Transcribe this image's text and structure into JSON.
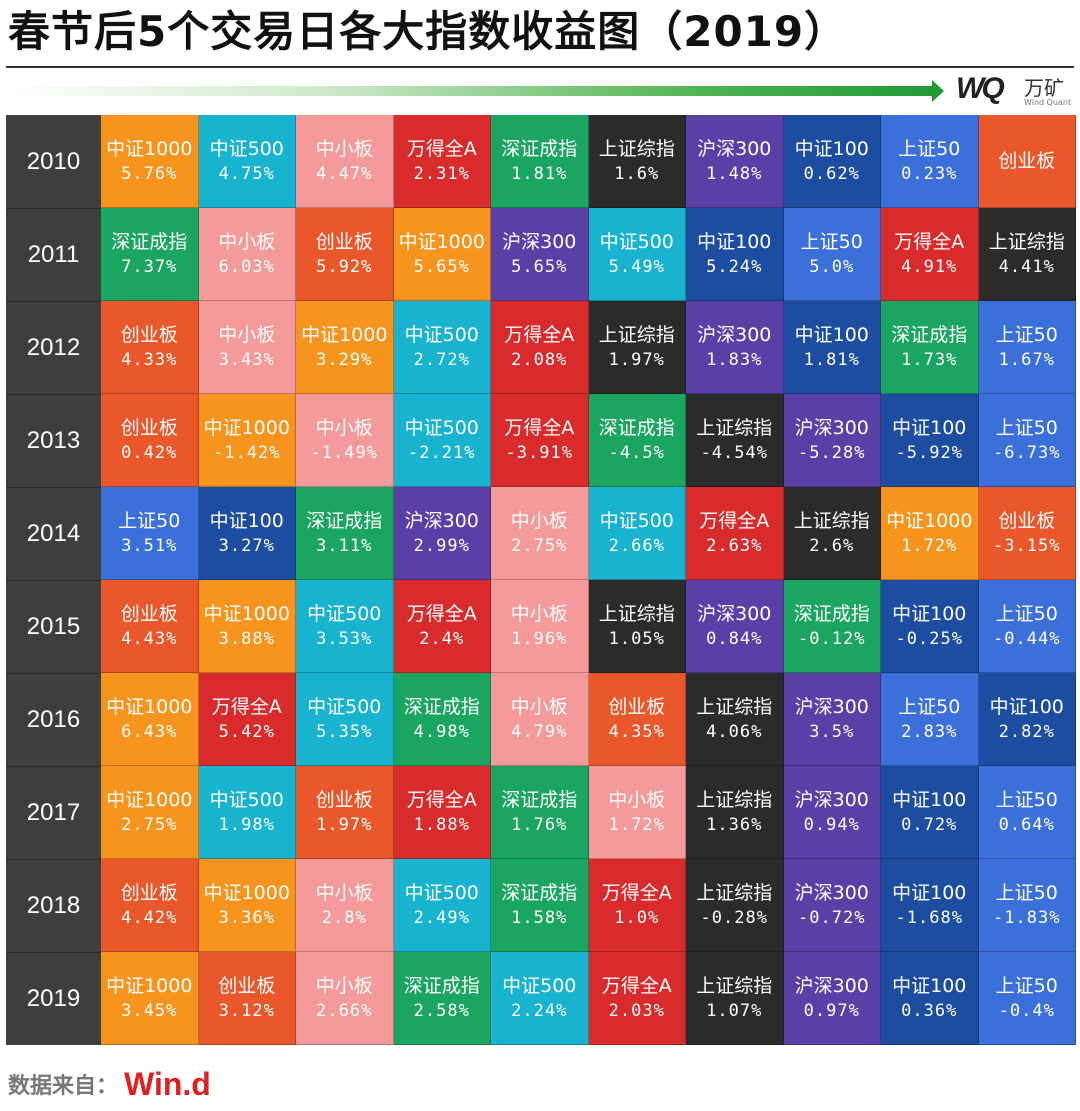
{
  "title": "春节后5个交易日各大指数收益图（2019）",
  "logo": {
    "mark": "WQ",
    "cn": "万矿",
    "en": "Wind Quant"
  },
  "source": {
    "label": "数据来自：",
    "brand": "Win.d"
  },
  "colors": {
    "中证1000": "#f7941d",
    "中证500": "#17b3cf",
    "中小板": "#f59a9a",
    "万得全A": "#d92b2b",
    "深证成指": "#1aa561",
    "上证综指": "#2b2b2b",
    "沪深300": "#5b3fa6",
    "中证100": "#1d4da0",
    "上证50": "#3b6fd9",
    "创业板": "#e9572a"
  },
  "chart_data": {
    "type": "table",
    "title": "春节后5个交易日各大指数收益图（2019）",
    "rows": [
      {
        "year": "2010",
        "cells": [
          {
            "name": "中证1000",
            "value": "5.76%"
          },
          {
            "name": "中证500",
            "value": "4.75%"
          },
          {
            "name": "中小板",
            "value": "4.47%"
          },
          {
            "name": "万得全A",
            "value": "2.31%"
          },
          {
            "name": "深证成指",
            "value": "1.81%"
          },
          {
            "name": "上证综指",
            "value": "1.6%"
          },
          {
            "name": "沪深300",
            "value": "1.48%"
          },
          {
            "name": "中证100",
            "value": "0.62%"
          },
          {
            "name": "上证50",
            "value": "0.23%"
          },
          {
            "name": "创业板",
            "value": ""
          }
        ]
      },
      {
        "year": "2011",
        "cells": [
          {
            "name": "深证成指",
            "value": "7.37%"
          },
          {
            "name": "中小板",
            "value": "6.03%"
          },
          {
            "name": "创业板",
            "value": "5.92%"
          },
          {
            "name": "中证1000",
            "value": "5.65%"
          },
          {
            "name": "沪深300",
            "value": "5.65%"
          },
          {
            "name": "中证500",
            "value": "5.49%"
          },
          {
            "name": "中证100",
            "value": "5.24%"
          },
          {
            "name": "上证50",
            "value": "5.0%"
          },
          {
            "name": "万得全A",
            "value": "4.91%"
          },
          {
            "name": "上证综指",
            "value": "4.41%"
          }
        ]
      },
      {
        "year": "2012",
        "cells": [
          {
            "name": "创业板",
            "value": "4.33%"
          },
          {
            "name": "中小板",
            "value": "3.43%"
          },
          {
            "name": "中证1000",
            "value": "3.29%"
          },
          {
            "name": "中证500",
            "value": "2.72%"
          },
          {
            "name": "万得全A",
            "value": "2.08%"
          },
          {
            "name": "上证综指",
            "value": "1.97%"
          },
          {
            "name": "沪深300",
            "value": "1.83%"
          },
          {
            "name": "中证100",
            "value": "1.81%"
          },
          {
            "name": "深证成指",
            "value": "1.73%"
          },
          {
            "name": "上证50",
            "value": "1.67%"
          }
        ]
      },
      {
        "year": "2013",
        "cells": [
          {
            "name": "创业板",
            "value": "0.42%"
          },
          {
            "name": "中证1000",
            "value": "-1.42%"
          },
          {
            "name": "中小板",
            "value": "-1.49%"
          },
          {
            "name": "中证500",
            "value": "-2.21%"
          },
          {
            "name": "万得全A",
            "value": "-3.91%"
          },
          {
            "name": "深证成指",
            "value": "-4.5%"
          },
          {
            "name": "上证综指",
            "value": "-4.54%"
          },
          {
            "name": "沪深300",
            "value": "-5.28%"
          },
          {
            "name": "中证100",
            "value": "-5.92%"
          },
          {
            "name": "上证50",
            "value": "-6.73%"
          }
        ]
      },
      {
        "year": "2014",
        "cells": [
          {
            "name": "上证50",
            "value": "3.51%"
          },
          {
            "name": "中证100",
            "value": "3.27%"
          },
          {
            "name": "深证成指",
            "value": "3.11%"
          },
          {
            "name": "沪深300",
            "value": "2.99%"
          },
          {
            "name": "中小板",
            "value": "2.75%"
          },
          {
            "name": "中证500",
            "value": "2.66%"
          },
          {
            "name": "万得全A",
            "value": "2.63%"
          },
          {
            "name": "上证综指",
            "value": "2.6%"
          },
          {
            "name": "中证1000",
            "value": "1.72%"
          },
          {
            "name": "创业板",
            "value": "-3.15%"
          }
        ]
      },
      {
        "year": "2015",
        "cells": [
          {
            "name": "创业板",
            "value": "4.43%"
          },
          {
            "name": "中证1000",
            "value": "3.88%"
          },
          {
            "name": "中证500",
            "value": "3.53%"
          },
          {
            "name": "万得全A",
            "value": "2.4%"
          },
          {
            "name": "中小板",
            "value": "1.96%"
          },
          {
            "name": "上证综指",
            "value": "1.05%"
          },
          {
            "name": "沪深300",
            "value": "0.84%"
          },
          {
            "name": "深证成指",
            "value": "-0.12%"
          },
          {
            "name": "中证100",
            "value": "-0.25%"
          },
          {
            "name": "上证50",
            "value": "-0.44%"
          }
        ]
      },
      {
        "year": "2016",
        "cells": [
          {
            "name": "中证1000",
            "value": "6.43%"
          },
          {
            "name": "万得全A",
            "value": "5.42%"
          },
          {
            "name": "中证500",
            "value": "5.35%"
          },
          {
            "name": "深证成指",
            "value": "4.98%"
          },
          {
            "name": "中小板",
            "value": "4.79%"
          },
          {
            "name": "创业板",
            "value": "4.35%"
          },
          {
            "name": "上证综指",
            "value": "4.06%"
          },
          {
            "name": "沪深300",
            "value": "3.5%"
          },
          {
            "name": "上证50",
            "value": "2.83%"
          },
          {
            "name": "中证100",
            "value": "2.82%"
          }
        ]
      },
      {
        "year": "2017",
        "cells": [
          {
            "name": "中证1000",
            "value": "2.75%"
          },
          {
            "name": "中证500",
            "value": "1.98%"
          },
          {
            "name": "创业板",
            "value": "1.97%"
          },
          {
            "name": "万得全A",
            "value": "1.88%"
          },
          {
            "name": "深证成指",
            "value": "1.76%"
          },
          {
            "name": "中小板",
            "value": "1.72%"
          },
          {
            "name": "上证综指",
            "value": "1.36%"
          },
          {
            "name": "沪深300",
            "value": "0.94%"
          },
          {
            "name": "中证100",
            "value": "0.72%"
          },
          {
            "name": "上证50",
            "value": "0.64%"
          }
        ]
      },
      {
        "year": "2018",
        "cells": [
          {
            "name": "创业板",
            "value": "4.42%"
          },
          {
            "name": "中证1000",
            "value": "3.36%"
          },
          {
            "name": "中小板",
            "value": "2.8%"
          },
          {
            "name": "中证500",
            "value": "2.49%"
          },
          {
            "name": "深证成指",
            "value": "1.58%"
          },
          {
            "name": "万得全A",
            "value": "1.0%"
          },
          {
            "name": "上证综指",
            "value": "-0.28%"
          },
          {
            "name": "沪深300",
            "value": "-0.72%"
          },
          {
            "name": "中证100",
            "value": "-1.68%"
          },
          {
            "name": "上证50",
            "value": "-1.83%"
          }
        ]
      },
      {
        "year": "2019",
        "cells": [
          {
            "name": "中证1000",
            "value": "3.45%"
          },
          {
            "name": "创业板",
            "value": "3.12%"
          },
          {
            "name": "中小板",
            "value": "2.66%"
          },
          {
            "name": "深证成指",
            "value": "2.58%"
          },
          {
            "name": "中证500",
            "value": "2.24%"
          },
          {
            "name": "万得全A",
            "value": "2.03%"
          },
          {
            "name": "上证综指",
            "value": "1.07%"
          },
          {
            "name": "沪深300",
            "value": "0.97%"
          },
          {
            "name": "中证100",
            "value": "0.36%"
          },
          {
            "name": "上证50",
            "value": "-0.4%"
          }
        ]
      }
    ]
  }
}
